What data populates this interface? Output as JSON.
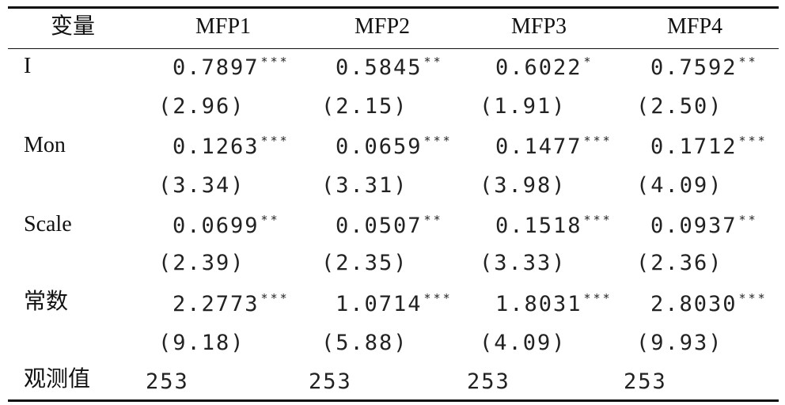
{
  "table": {
    "headers": [
      "变量",
      "MFP1",
      "MFP2",
      "MFP3",
      "MFP4"
    ],
    "rows": [
      {
        "variable": "I",
        "coefficients": [
          {
            "value": "0.7897",
            "stars": "***"
          },
          {
            "value": "0.5845",
            "stars": "**"
          },
          {
            "value": "0.6022",
            "stars": "*"
          },
          {
            "value": "0.7592",
            "stars": "**"
          }
        ],
        "t_stats": [
          "(2.96)",
          "(2.15)",
          "(1.91)",
          "(2.50)"
        ]
      },
      {
        "variable": "Mon",
        "coefficients": [
          {
            "value": "0.1263",
            "stars": "***"
          },
          {
            "value": "0.0659",
            "stars": "***"
          },
          {
            "value": "0.1477",
            "stars": "***"
          },
          {
            "value": "0.1712",
            "stars": "***"
          }
        ],
        "t_stats": [
          "(3.34)",
          "(3.31)",
          "(3.98)",
          "(4.09)"
        ]
      },
      {
        "variable": "Scale",
        "coefficients": [
          {
            "value": "0.0699",
            "stars": "**"
          },
          {
            "value": "0.0507",
            "stars": "**"
          },
          {
            "value": "0.1518",
            "stars": "***"
          },
          {
            "value": "0.0937",
            "stars": "**"
          }
        ],
        "t_stats": [
          "(2.39)",
          "(2.35)",
          "(3.33)",
          "(2.36)"
        ]
      },
      {
        "variable": "常数",
        "coefficients": [
          {
            "value": "2.2773",
            "stars": "***"
          },
          {
            "value": "1.0714",
            "stars": "***"
          },
          {
            "value": "1.8031",
            "stars": "***"
          },
          {
            "value": "2.8030",
            "stars": "***"
          }
        ],
        "t_stats": [
          "(9.18)",
          "(5.88)",
          "(4.09)",
          "(9.93)"
        ]
      }
    ],
    "observations": {
      "label": "观测值",
      "values": [
        "253",
        "253",
        "253",
        "253"
      ]
    }
  }
}
